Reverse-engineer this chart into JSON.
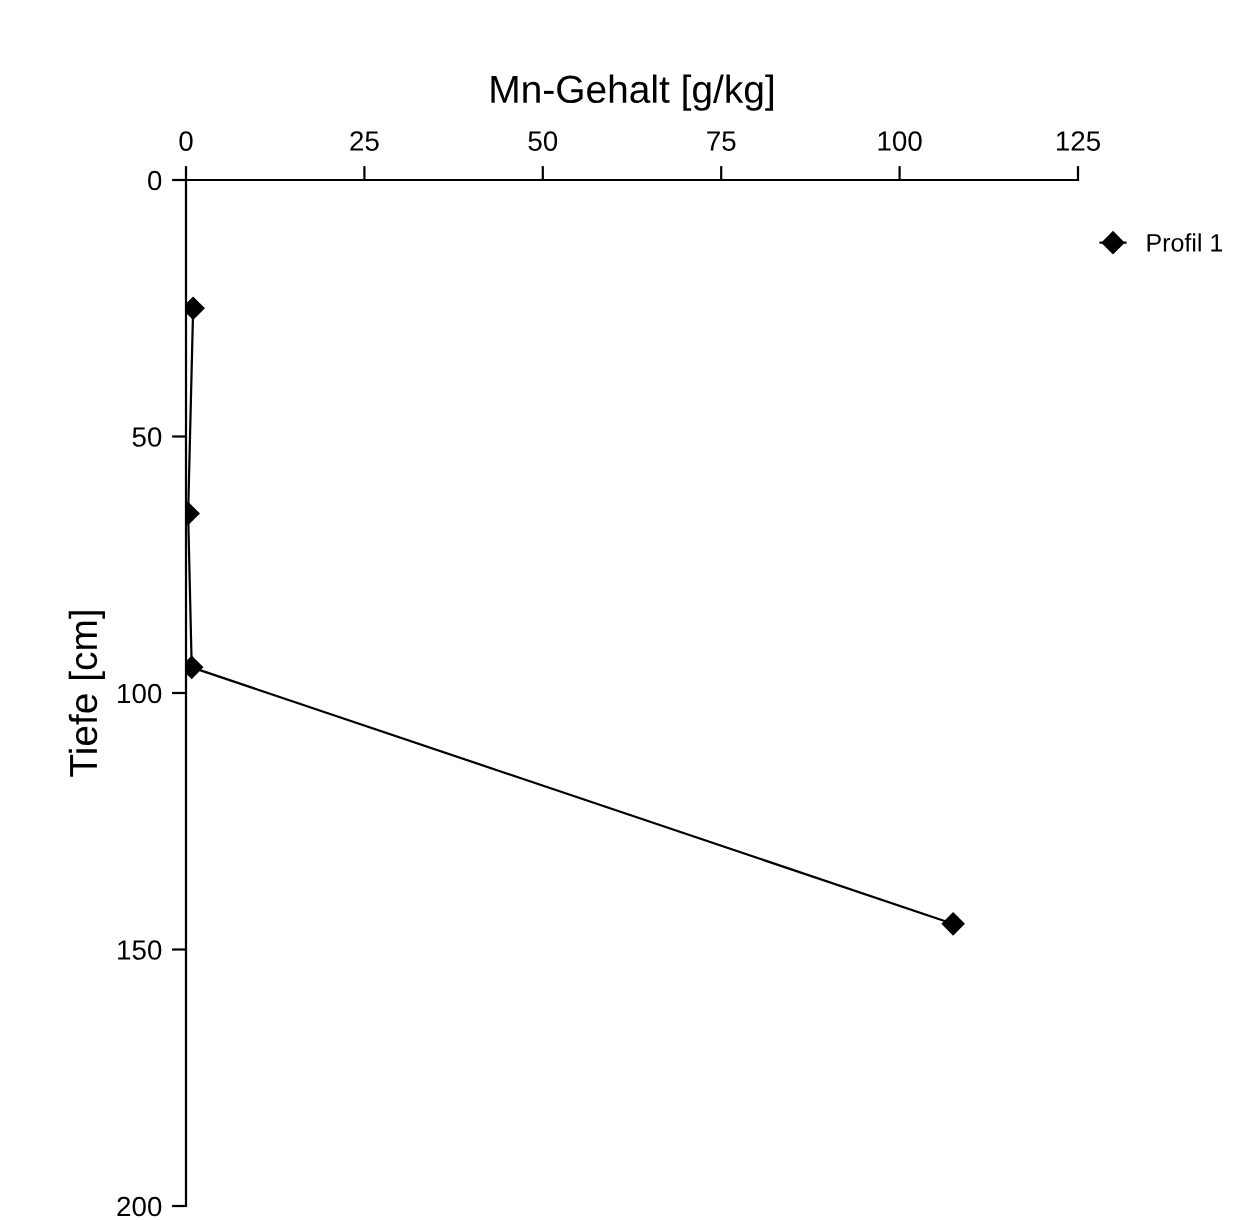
{
  "chart_data": {
    "type": "line",
    "xlabel": "Mn-Gehalt [g/kg]",
    "ylabel": "Tiefe [cm]",
    "series": [
      {
        "name": "Profil 1",
        "color": "#000000",
        "x": [
          1.0,
          0.3,
          0.8,
          107.5
        ],
        "values": [
          25,
          65,
          95,
          145
        ]
      }
    ],
    "xlim": [
      0,
      125
    ],
    "xticks": [
      0,
      25,
      50,
      75,
      100,
      125
    ],
    "ylim": [
      200,
      0
    ],
    "yticks": [
      0,
      50,
      100,
      150,
      200
    ],
    "marker": "diamond",
    "line_style": "solid",
    "grid": false,
    "legend": "top right"
  }
}
